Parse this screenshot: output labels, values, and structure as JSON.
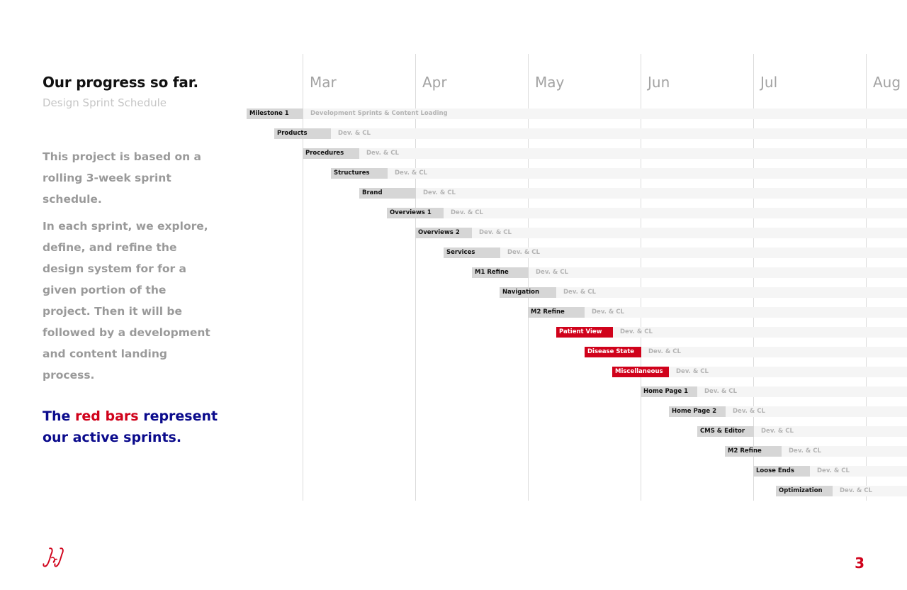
{
  "header": {
    "title": "Our progress so far.",
    "subtitle": "Design Sprint Schedule"
  },
  "body": {
    "para1": "This project is based on a rolling 3-week sprint schedule.",
    "para2": "In each sprint, we explore, define, and refine the design system for for a given portion of the project. Then it will be followed by a development and content landing process.",
    "callout_pre": "The ",
    "callout_red": "red bars",
    "callout_post": " represent our active sprints."
  },
  "footer": {
    "logo": "J&J",
    "page_number": "3"
  },
  "colors": {
    "active": "#d0021b",
    "inactive": "#d6d6d6",
    "accent_text": "#0b0b8c"
  },
  "chart_data": {
    "type": "gantt",
    "months": [
      "Mar",
      "Apr",
      "May",
      "Jun",
      "Jul",
      "Aug"
    ],
    "tasks": [
      {
        "name": "Milestone 1",
        "start": -0.5,
        "duration": 0.5,
        "note": "Development Sprints & Content Loading",
        "active": false
      },
      {
        "name": "Products",
        "start": -0.25,
        "duration": 0.5,
        "note": "Dev. & CL",
        "active": false
      },
      {
        "name": "Procedures",
        "start": 0.0,
        "duration": 0.5,
        "note": "Dev. & CL",
        "active": false
      },
      {
        "name": "Structures",
        "start": 0.25,
        "duration": 0.5,
        "note": "Dev. & CL",
        "active": false
      },
      {
        "name": "Brand",
        "start": 0.5,
        "duration": 0.5,
        "note": "Dev. & CL",
        "active": false
      },
      {
        "name": "Overviews 1",
        "start": 0.75,
        "duration": 0.5,
        "note": "Dev. & CL",
        "active": false
      },
      {
        "name": "Overviews 2",
        "start": 1.0,
        "duration": 0.5,
        "note": "Dev. & CL",
        "active": false
      },
      {
        "name": "Services",
        "start": 1.25,
        "duration": 0.5,
        "note": "Dev. & CL",
        "active": false
      },
      {
        "name": "M1 Refine",
        "start": 1.5,
        "duration": 0.5,
        "note": "Dev. & CL",
        "active": false
      },
      {
        "name": "Navigation",
        "start": 1.75,
        "duration": 0.5,
        "note": "Dev. & CL",
        "active": false
      },
      {
        "name": "M2 Refine",
        "start": 2.0,
        "duration": 0.5,
        "note": "Dev. & CL",
        "active": false
      },
      {
        "name": "Patient View",
        "start": 2.25,
        "duration": 0.5,
        "note": "Dev. & CL",
        "active": true
      },
      {
        "name": "Disease State",
        "start": 2.5,
        "duration": 0.5,
        "note": "Dev. & CL",
        "active": true
      },
      {
        "name": "Miscellaneous",
        "start": 2.75,
        "duration": 0.5,
        "note": "Dev. & CL",
        "active": true
      },
      {
        "name": "Home Page 1",
        "start": 3.0,
        "duration": 0.5,
        "note": "Dev. & CL",
        "active": false
      },
      {
        "name": "Home Page 2",
        "start": 3.25,
        "duration": 0.5,
        "note": "Dev. & CL",
        "active": false
      },
      {
        "name": "CMS & Editor",
        "start": 3.5,
        "duration": 0.5,
        "note": "Dev. & CL",
        "active": false
      },
      {
        "name": "M2 Refine",
        "start": 3.75,
        "duration": 0.5,
        "note": "Dev. & CL",
        "active": false
      },
      {
        "name": "Loose Ends",
        "start": 4.0,
        "duration": 0.5,
        "note": "Dev. & CL",
        "active": false
      },
      {
        "name": "Optimization",
        "start": 4.2,
        "duration": 0.5,
        "note": "Dev. & CL",
        "active": false
      }
    ]
  }
}
